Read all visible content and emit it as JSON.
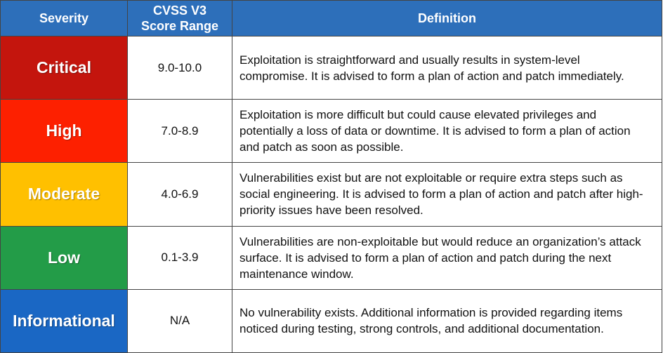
{
  "table": {
    "header": [
      "Severity",
      "CVSS V3 Score Range",
      "Definition"
    ],
    "rows": [
      [
        "Critical",
        "9.0-10.0",
        "Exploitation is straightforward and usually results in system-level compromise.  It is advised to form a plan of action and patch immediately."
      ],
      [
        "High",
        "7.0-8.9",
        "Exploitation is more difficult but could cause elevated privileges and potentially a loss of data or downtime.  It is advised to form a plan of action and patch as soon as possible."
      ],
      [
        "Moderate",
        "4.0-6.9",
        "Vulnerabilities exist but are not exploitable or require extra steps such as social engineering.  It is advised to form a plan of action and patch after high-priority issues have been resolved."
      ],
      [
        "Low",
        "0.1-3.9",
        "Vulnerabilities are non-exploitable but would reduce an organization’s attack surface.  It is advised to form a plan of action and patch during the next maintenance window."
      ],
      [
        "Informational",
        "N/A",
        "No vulnerability exists.  Additional information is provided regarding items noticed during testing, strong controls, and additional documentation."
      ]
    ]
  }
}
